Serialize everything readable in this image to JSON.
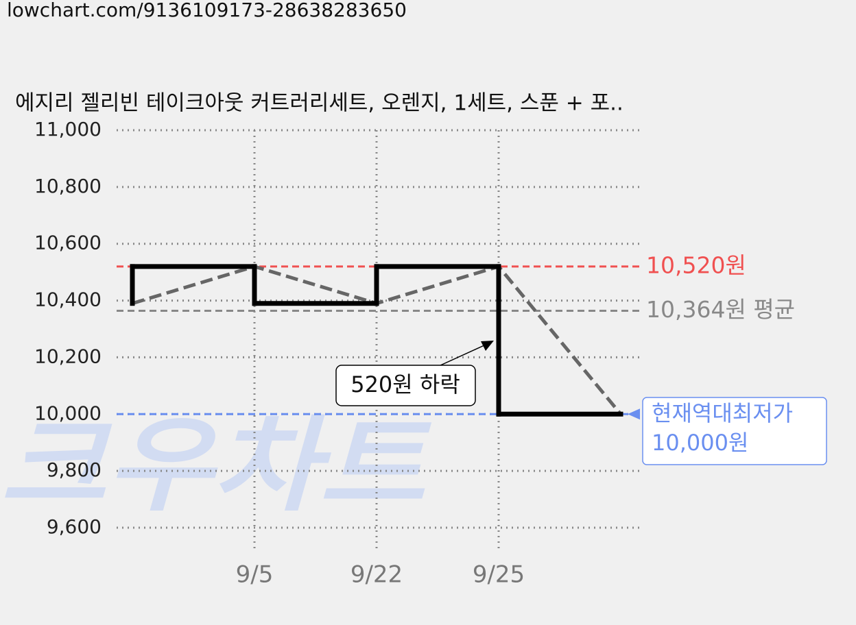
{
  "header": {
    "url": "lowchart.com/9136109173-28638283650"
  },
  "chart_data": {
    "type": "step-line",
    "title": "에지리 젤리빈 테이크아웃 커트러리세트, 오렌지, 1세트, 스푼 + 포..",
    "categories": [
      null,
      "9/5",
      "9/22",
      "9/25",
      null
    ],
    "series": [
      {
        "color": "#000000",
        "trend_color": "#666666",
        "values": [
          10390,
          10520,
          10390,
          10520,
          10000
        ]
      }
    ],
    "ylim": [
      9600,
      11000
    ],
    "yticks": [
      {
        "value": 9600,
        "label": "9,600"
      },
      {
        "value": 9800,
        "label": "9,800"
      },
      {
        "value": 10000,
        "label": "10,000"
      },
      {
        "value": 10200,
        "label": "10,200"
      },
      {
        "value": 10400,
        "label": "10,400"
      },
      {
        "value": 10600,
        "label": "10,600"
      },
      {
        "value": 10800,
        "label": "10,800"
      },
      {
        "value": 11000,
        "label": "11,000"
      }
    ],
    "grid": true,
    "reference_lines": [
      {
        "value": 10520,
        "label": "10,520원",
        "color": "#f05050"
      },
      {
        "value": 10364,
        "label": "10,364원 평균",
        "color": "#888888"
      },
      {
        "value": 10000,
        "title": "현재역대최저가",
        "label": "10,000원",
        "color": "#6a8ff0"
      }
    ],
    "annotation": {
      "text": "520원 하락"
    },
    "watermark": "크우차트"
  }
}
